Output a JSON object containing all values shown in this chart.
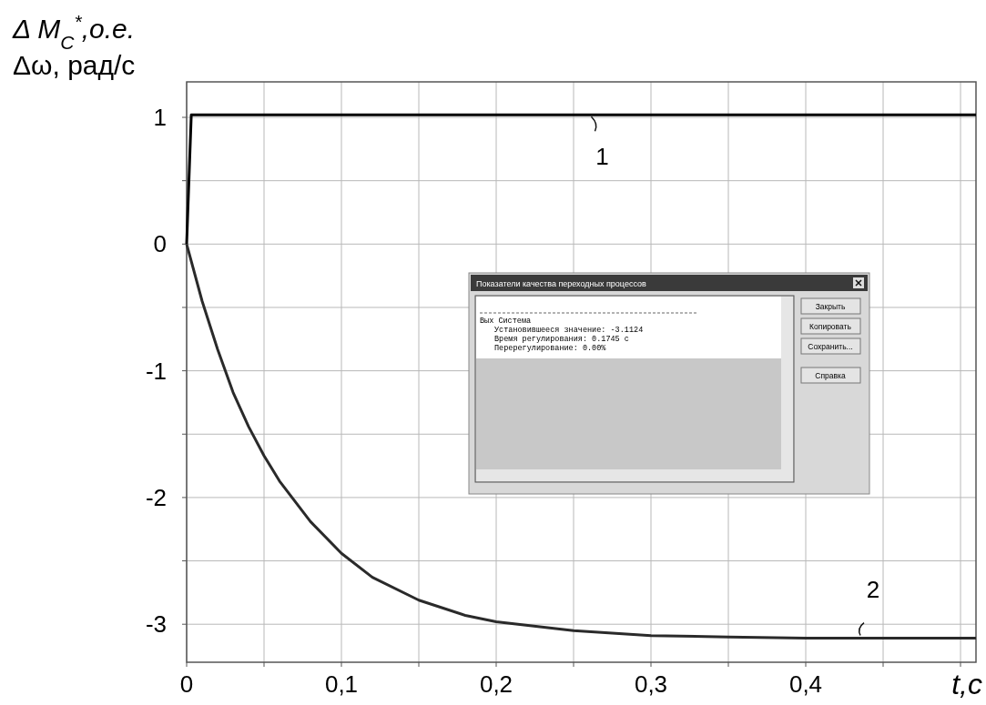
{
  "chart_data": {
    "type": "line",
    "ylabel": "Δ M$_{C}$$^{*}$,о.е.\nΔω, рад/с",
    "xlabel": "t,c",
    "xlim": [
      0,
      0.51
    ],
    "ylim": [
      -3.3,
      1.28
    ],
    "xticks": [
      0,
      {
        "value": 0.05,
        "label": null
      },
      {
        "value": 0.1,
        "label": "0,1"
      },
      {
        "value": 0.15,
        "label": null
      },
      {
        "value": 0.2,
        "label": "0,2"
      },
      {
        "value": 0.25,
        "label": null
      },
      {
        "value": 0.3,
        "label": "0,3"
      },
      {
        "value": 0.35,
        "label": null
      },
      {
        "value": 0.4,
        "label": "0,4"
      },
      {
        "value": 0.45,
        "label": null
      },
      {
        "value": 0.5,
        "label": null
      }
    ],
    "yticks": [
      -3,
      {
        "value": -2.5,
        "label": null
      },
      -2,
      {
        "value": -1.5,
        "label": null
      },
      -1,
      {
        "value": -0.5,
        "label": null
      },
      0,
      {
        "value": 0.5,
        "label": null
      },
      1
    ],
    "grid": true,
    "line_style": "solid",
    "marker": "none",
    "series": [
      {
        "color": "#000000",
        "x": [
          0,
          0.003,
          0.51
        ],
        "values": [
          0,
          1.02,
          1.02
        ]
      },
      {
        "color": "#2a2a2a",
        "x": [
          0,
          0.01,
          0.02,
          0.03,
          0.04,
          0.05,
          0.06,
          0.08,
          0.1,
          0.12,
          0.15,
          0.18,
          0.2,
          0.25,
          0.3,
          0.35,
          0.4,
          0.45,
          0.5,
          0.51
        ],
        "values": [
          0,
          -0.45,
          -0.83,
          -1.17,
          -1.44,
          -1.67,
          -1.87,
          -2.19,
          -2.44,
          -2.63,
          -2.81,
          -2.93,
          -2.98,
          -3.05,
          -3.09,
          -3.1,
          -3.11,
          -3.11,
          -3.11,
          -3.11
        ]
      }
    ],
    "annotations": [
      {
        "text": "1",
        "x": 0.265,
        "y": 1.02
      },
      {
        "text": "2",
        "x": 0.44,
        "y": -3.11
      },
      "Показатели качества переходных процессов",
      "Вых Система",
      "Установившееся значение: -3.1124",
      "Время регулирования: 0.1745 с",
      "Перерегулирование: 0.00%",
      "Закрыть",
      "Копировать",
      "Сохранить...",
      "Справка"
    ]
  }
}
